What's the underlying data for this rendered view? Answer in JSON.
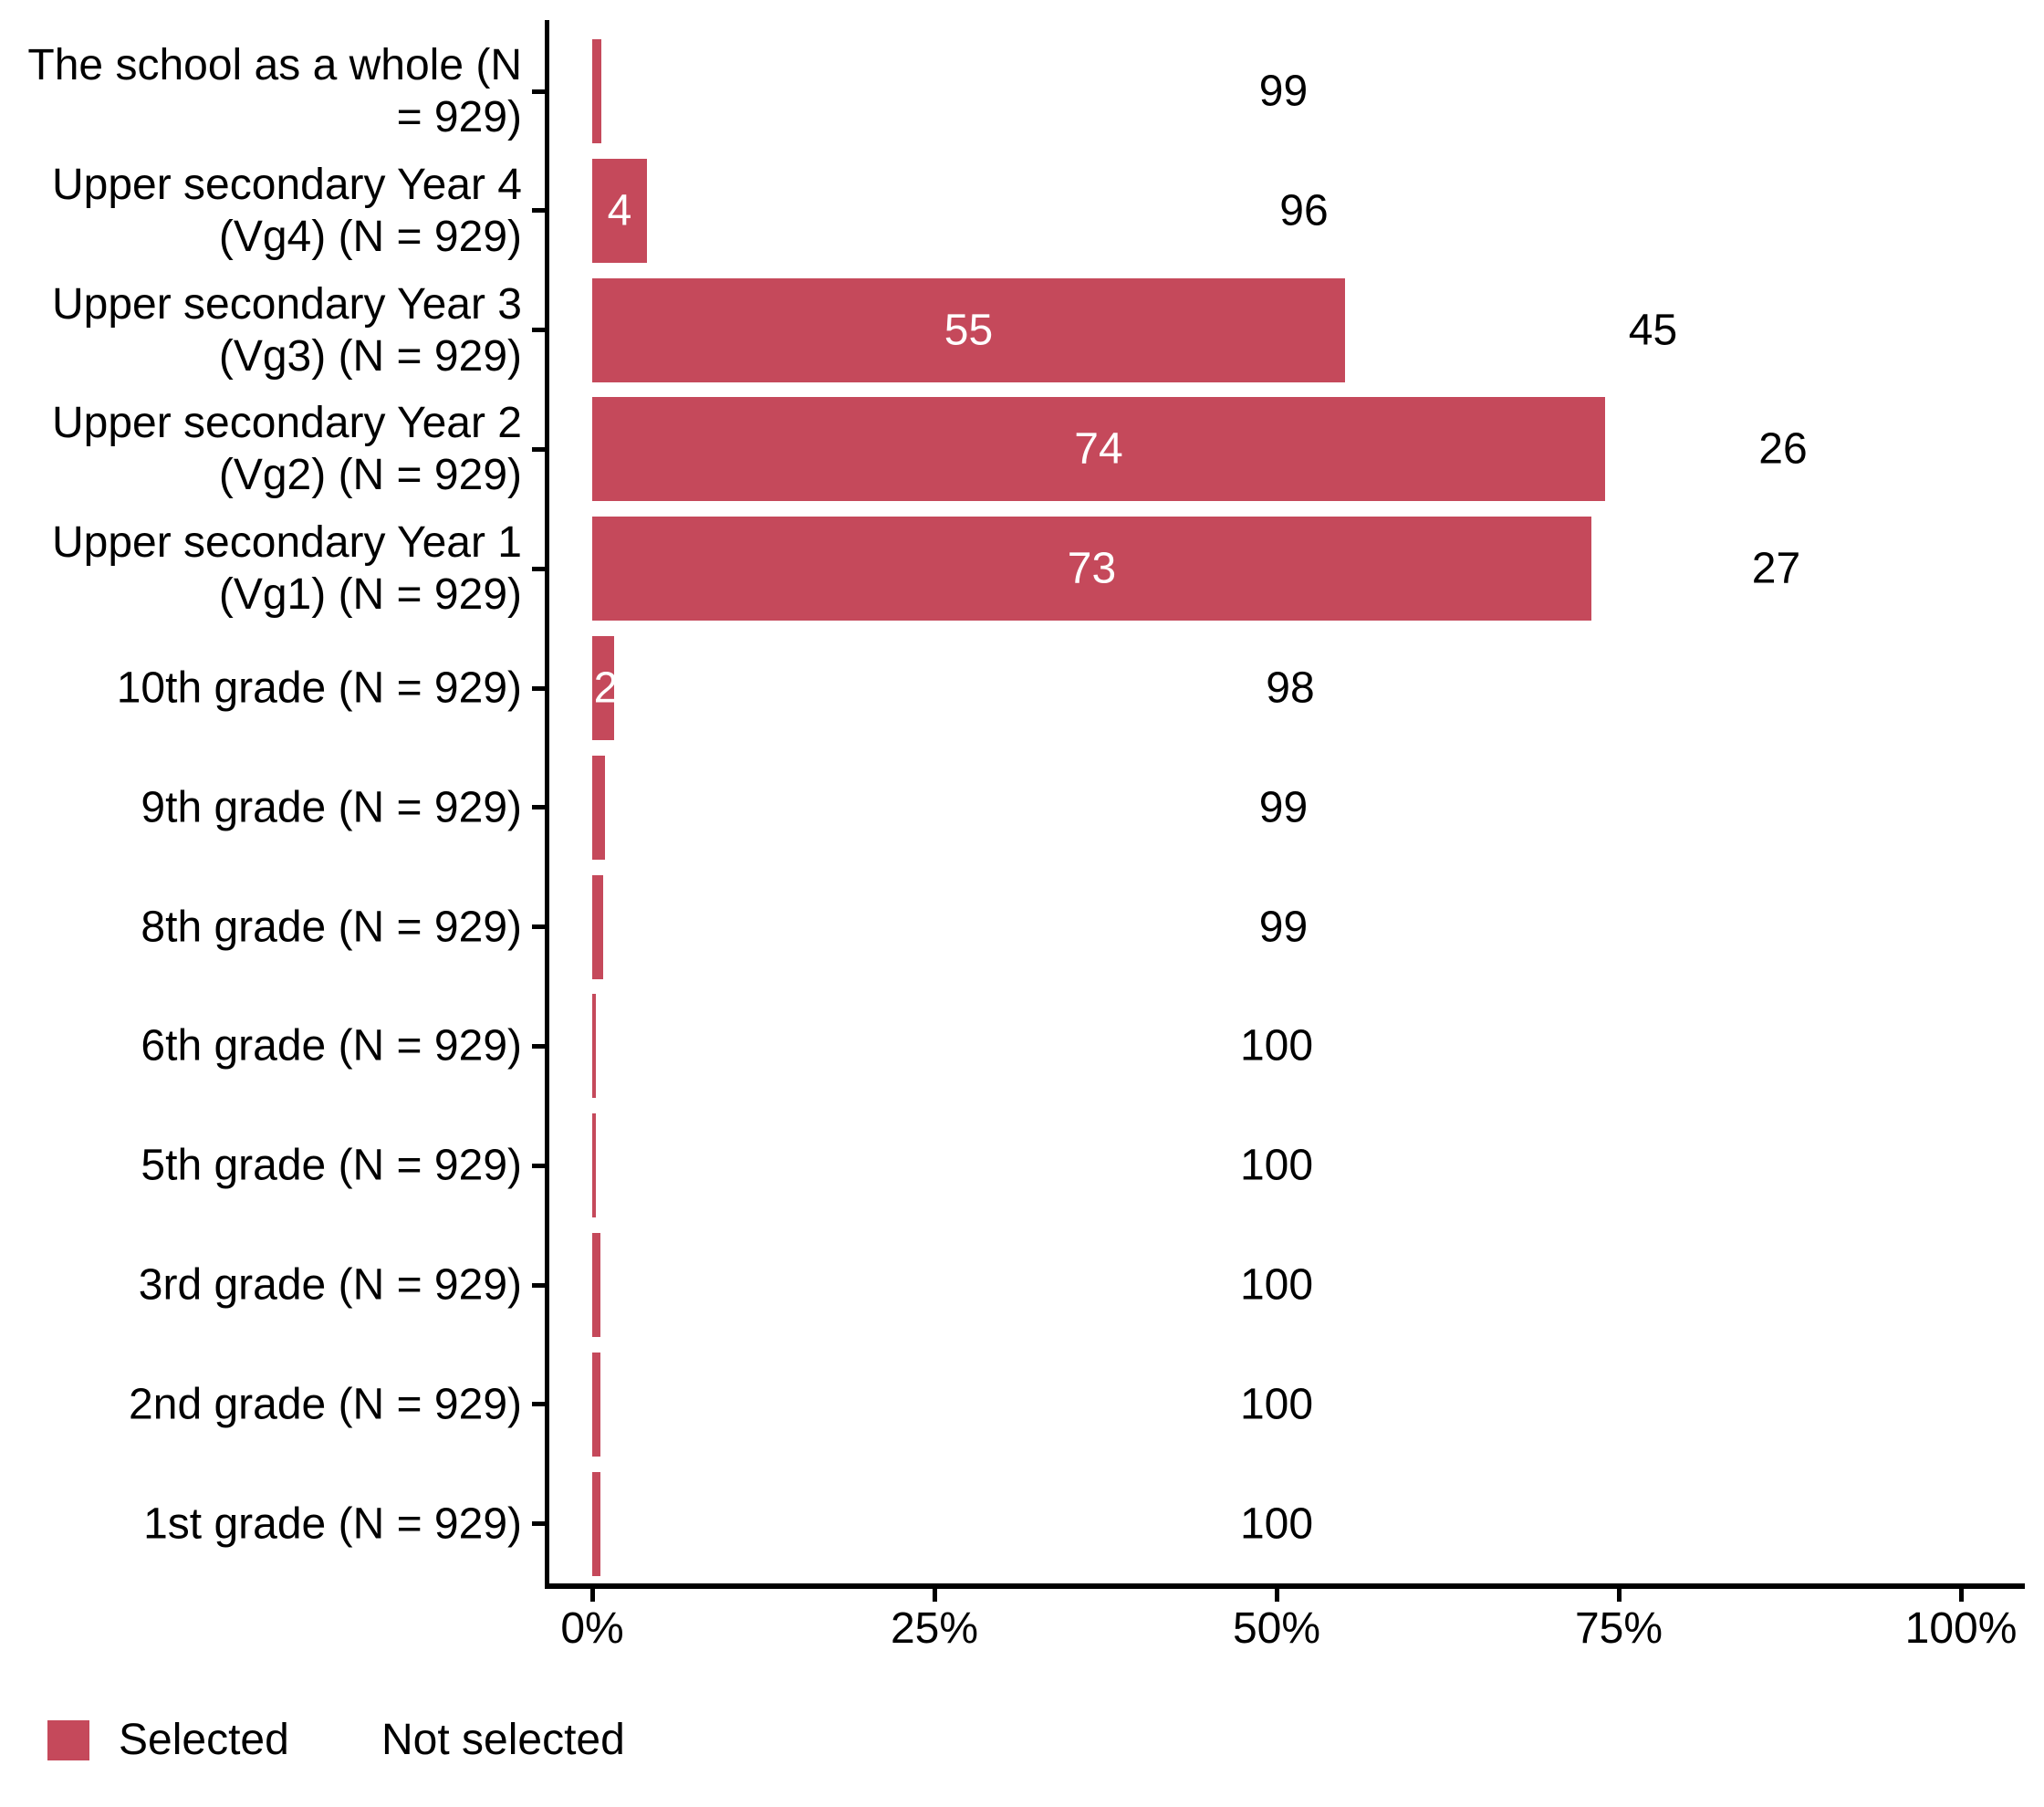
{
  "chart_data": {
    "type": "bar",
    "orientation": "horizontal",
    "stacked": true,
    "unit": "%",
    "title": "",
    "xlabel": "",
    "ylabel": "",
    "xlim": [
      0,
      100
    ],
    "grid": false,
    "x_tick_labels": [
      "0%",
      "25%",
      "50%",
      "75%",
      "100%"
    ],
    "x_tick_values": [
      0,
      25,
      50,
      75,
      100
    ],
    "legend_position": "bottom-left",
    "categories": [
      "The school as a whole (N = 929)",
      "Upper secondary Year 4 (Vg4) (N = 929)",
      "Upper secondary Year 3 (Vg3) (N = 929)",
      "Upper secondary Year 2 (Vg2) (N = 929)",
      "Upper secondary Year 1 (Vg1) (N = 929)",
      "10th grade (N = 929)",
      "9th grade (N = 929)",
      "8th grade (N = 929)",
      "6th grade (N = 929)",
      "5th grade (N = 929)",
      "3rd grade (N = 929)",
      "2nd grade (N = 929)",
      "1st grade (N = 929)"
    ],
    "series": [
      {
        "name": "Selected",
        "color": "#C5495B",
        "values": [
          1,
          4,
          55,
          74,
          73,
          2,
          1,
          1,
          0,
          0,
          0,
          0,
          0
        ]
      },
      {
        "name": "Not selected",
        "color": "#FFFFFF",
        "values": [
          99,
          96,
          45,
          26,
          27,
          98,
          99,
          99,
          100,
          100,
          100,
          100,
          100
        ]
      }
    ],
    "rows": [
      {
        "label_lines": [
          "The school as a whole (N",
          "= 929)"
        ],
        "selected": 1,
        "not_selected": 99,
        "selected_label": "",
        "not_selected_label": "99",
        "bar_pct": 0.65
      },
      {
        "label_lines": [
          "Upper secondary Year 4",
          "(Vg4) (N = 929)"
        ],
        "selected": 4,
        "not_selected": 96,
        "selected_label": "4",
        "not_selected_label": "96",
        "bar_pct": 4
      },
      {
        "label_lines": [
          "Upper secondary Year 3",
          "(Vg3) (N = 929)"
        ],
        "selected": 55,
        "not_selected": 45,
        "selected_label": "55",
        "not_selected_label": "45",
        "bar_pct": 55
      },
      {
        "label_lines": [
          "Upper secondary Year 2",
          "(Vg2) (N = 929)"
        ],
        "selected": 74,
        "not_selected": 26,
        "selected_label": "74",
        "not_selected_label": "26",
        "bar_pct": 74
      },
      {
        "label_lines": [
          "Upper secondary Year 1",
          "(Vg1) (N = 929)"
        ],
        "selected": 73,
        "not_selected": 27,
        "selected_label": "73",
        "not_selected_label": "27",
        "bar_pct": 73
      },
      {
        "label_lines": [
          "10th grade (N = 929)"
        ],
        "selected": 2,
        "not_selected": 98,
        "selected_label": "2",
        "not_selected_label": "98",
        "bar_pct": 1.6
      },
      {
        "label_lines": [
          "9th grade (N = 929)"
        ],
        "selected": 1,
        "not_selected": 99,
        "selected_label": "",
        "not_selected_label": "99",
        "bar_pct": 0.9
      },
      {
        "label_lines": [
          "8th grade (N = 929)"
        ],
        "selected": 1,
        "not_selected": 99,
        "selected_label": "",
        "not_selected_label": "99",
        "bar_pct": 0.8
      },
      {
        "label_lines": [
          "6th grade (N = 929)"
        ],
        "selected": 0,
        "not_selected": 100,
        "selected_label": "",
        "not_selected_label": "100",
        "bar_pct": 0.25
      },
      {
        "label_lines": [
          "5th grade (N = 929)"
        ],
        "selected": 0,
        "not_selected": 100,
        "selected_label": "",
        "not_selected_label": "100",
        "bar_pct": 0.25
      },
      {
        "label_lines": [
          "3rd grade (N = 929)"
        ],
        "selected": 0,
        "not_selected": 100,
        "selected_label": "",
        "not_selected_label": "100",
        "bar_pct": 0.6
      },
      {
        "label_lines": [
          "2nd grade (N = 929)"
        ],
        "selected": 0,
        "not_selected": 100,
        "selected_label": "",
        "not_selected_label": "100",
        "bar_pct": 0.6
      },
      {
        "label_lines": [
          "1st grade (N = 929)"
        ],
        "selected": 0,
        "not_selected": 100,
        "selected_label": "",
        "not_selected_label": "100",
        "bar_pct": 0.6
      }
    ]
  },
  "legend": {
    "selected_label": "Selected",
    "not_selected_label": "Not selected"
  },
  "colors": {
    "bar_selected": "#C5495B",
    "bar_not_selected": "#FFFFFF",
    "axis": "#000000",
    "text": "#000000",
    "bar_value_text": "#FFFFFF",
    "background": "#FFFFFF"
  }
}
